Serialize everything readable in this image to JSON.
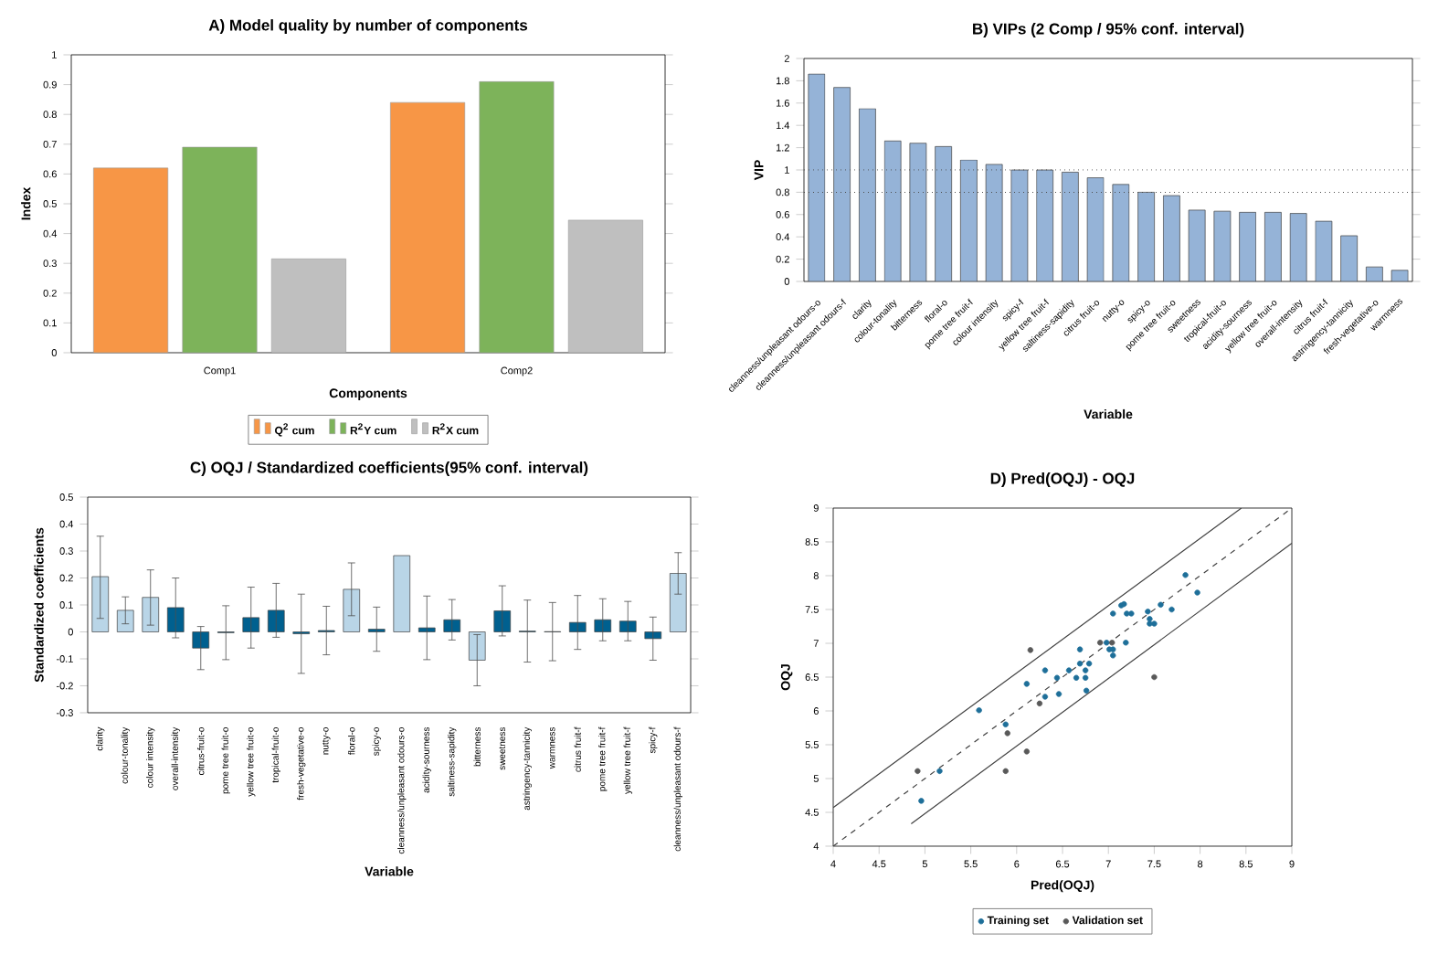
{
  "chart_data": [
    {
      "type": "bar",
      "title": "A)  Model quality by number of components",
      "xlabel": "Components",
      "ylabel": "Index",
      "categories": [
        "Comp1",
        "Comp2"
      ],
      "series": [
        {
          "name": "Q$^{2}$ cum",
          "color": "#f79646",
          "values": [
            0.62,
            0.84
          ]
        },
        {
          "name": "R$^{2}$Y cum",
          "color": "#7db35a",
          "values": [
            0.69,
            0.91
          ]
        },
        {
          "name": "R$^{2}$X cum",
          "color": "#bfbfbf",
          "values": [
            0.315,
            0.445
          ]
        }
      ],
      "ylim": [
        0,
        1
      ],
      "yticks": [
        0,
        0.1,
        0.2,
        0.3,
        0.4,
        0.5,
        0.6,
        0.7,
        0.8,
        0.9,
        1
      ],
      "legend": "bottom"
    },
    {
      "type": "bar",
      "title": "B)  VIPs (2 Comp / 95% conf. interval)",
      "xlabel": "Variable",
      "ylabel": "VIP",
      "categories": [
        "cleanness/unpleasant odours-o",
        "cleanness/unpleasant odours-f",
        "clarity",
        "colour-tonality",
        "bitterness",
        "floral-o",
        "pome tree fruit-f",
        "colour intensity",
        "spicy-f",
        "yellow tree fruit-f",
        "saltiness-sapidity",
        "citrus fruit-o",
        "nutty-o",
        "spicy-o",
        "pome tree fruit-o",
        "sweetness",
        "tropical-fruit-o",
        "acidity-sourness",
        "yellow tree fruit-o",
        "overall-intensity",
        "citrus fruit-f",
        "astringency-tannicity",
        "fresh-vegetative-o",
        "warmness"
      ],
      "values": [
        1.86,
        1.74,
        1.55,
        1.26,
        1.24,
        1.21,
        1.09,
        1.05,
        1.0,
        1.0,
        0.98,
        0.93,
        0.87,
        0.8,
        0.77,
        0.64,
        0.63,
        0.62,
        0.62,
        0.61,
        0.54,
        0.41,
        0.13,
        0.1
      ],
      "color": "#95b3d7",
      "ylim": [
        0,
        2
      ],
      "yticks": [
        0,
        0.2,
        0.4,
        0.6,
        0.8,
        1,
        1.2,
        1.4,
        1.6,
        1.8,
        2
      ],
      "ref_lines": [
        {
          "axis": "y",
          "value": 1,
          "line_style": "dotted"
        },
        {
          "axis": "y",
          "value": 0.8,
          "line_style": "dotted"
        }
      ]
    },
    {
      "type": "bar",
      "title": "C)  OQJ / Standardized coefficients(95% conf. interval)",
      "xlabel": "Variable",
      "ylabel": "Standardized coefficients",
      "categories": [
        "clarity",
        "colour-tonality",
        "colour intensity",
        "overall-intensity",
        "citrus-fruit-o",
        "pome tree fruit-o",
        "yellow tree fruit-o",
        "tropical-fruit-o",
        "fresh-vegetative-o",
        "nutty-o",
        "floral-o",
        "spicy-o",
        "cleanness/unpleasant odours-o",
        "acidity-sourness",
        "saltiness-sapidity",
        "bitterness",
        "sweetness",
        "astringency-tannicity",
        "warmness",
        "citrus fruit-f",
        "pome tree fruit-f",
        "yellow tree fruit-f",
        "spicy-f",
        "cleanness/unpleasant odours-f"
      ],
      "values": [
        0.205,
        0.08,
        0.128,
        0.09,
        -0.06,
        -0.003,
        0.053,
        0.08,
        -0.007,
        0.005,
        0.158,
        0.01,
        0.283,
        0.015,
        0.045,
        -0.105,
        0.078,
        0.003,
        0.001,
        0.035,
        0.045,
        0.04,
        -0.025,
        0.217
      ],
      "colors": [
        "#b9d5e7",
        "#b9d5e7",
        "#b9d5e7",
        "#00608f",
        "#00608f",
        "#00608f",
        "#00608f",
        "#00608f",
        "#00608f",
        "#00608f",
        "#b9d5e7",
        "#00608f",
        "#b9d5e7",
        "#00608f",
        "#00608f",
        "#b9d5e7",
        "#00608f",
        "#00608f",
        "#00608f",
        "#00608f",
        "#00608f",
        "#00608f",
        "#00608f",
        "#b9d5e7"
      ],
      "errors": [
        [
          0.05,
          0.355
        ],
        [
          0.03,
          0.13
        ],
        [
          0.025,
          0.23
        ],
        [
          -0.022,
          0.2
        ],
        [
          -0.14,
          0.02
        ],
        [
          -0.103,
          0.097
        ],
        [
          -0.06,
          0.166
        ],
        [
          -0.02,
          0.18
        ],
        [
          -0.154,
          0.14
        ],
        [
          -0.085,
          0.095
        ],
        [
          0.06,
          0.256
        ],
        [
          -0.072,
          0.092
        ],
        null,
        [
          -0.103,
          0.133
        ],
        [
          -0.03,
          0.12
        ],
        [
          -0.2,
          -0.01
        ],
        [
          -0.015,
          0.171
        ],
        [
          -0.112,
          0.118
        ],
        [
          -0.107,
          0.109
        ],
        [
          -0.065,
          0.135
        ],
        [
          -0.033,
          0.123
        ],
        [
          -0.033,
          0.113
        ],
        [
          -0.105,
          0.055
        ],
        [
          0.14,
          0.294
        ]
      ],
      "ylim": [
        -0.3,
        0.5
      ],
      "yticks": [
        -0.3,
        -0.2,
        -0.1,
        0,
        0.1,
        0.2,
        0.3,
        0.4,
        0.5
      ]
    },
    {
      "type": "scatter",
      "title": "D)  Pred(OQJ) - OQJ",
      "xlabel": "Pred(OQJ)",
      "ylabel": "OQJ",
      "marker": "circle",
      "legend": "bottom",
      "xlim": [
        4,
        9
      ],
      "xticks": [
        4,
        4.5,
        5,
        5.5,
        6,
        6.5,
        7,
        7.5,
        8,
        8.5,
        9
      ],
      "ylim": [
        4,
        9
      ],
      "yticks": [
        4,
        4.5,
        5,
        5.5,
        6,
        6.5,
        7,
        7.5,
        8,
        8.5,
        9
      ],
      "series": [
        {
          "name": "Training set",
          "color": "#1e6f99",
          "x": [
            4.96,
            5.16,
            5.59,
            5.88,
            6.11,
            6.31,
            6.31,
            6.44,
            6.46,
            6.57,
            6.65,
            6.69,
            6.69,
            6.75,
            6.75,
            6.76,
            6.79,
            6.98,
            7.01,
            7.03,
            7.05,
            7.05,
            7.05,
            7.14,
            7.17,
            7.19,
            7.2,
            7.25,
            7.43,
            7.45,
            7.45,
            7.5,
            7.57,
            7.69,
            7.84,
            7.97
          ],
          "values": [
            4.67,
            5.11,
            6.01,
            5.8,
            6.4,
            6.6,
            6.21,
            6.49,
            6.25,
            6.6,
            6.49,
            6.91,
            6.7,
            6.6,
            6.49,
            6.3,
            6.7,
            7.01,
            6.91,
            null,
            6.82,
            6.91,
            7.44,
            7.56,
            7.58,
            7.01,
            7.44,
            7.44,
            7.47,
            7.36,
            7.29,
            7.29,
            7.57,
            7.5,
            8.01,
            7.75
          ]
        },
        {
          "name": "Validation set",
          "color": "#595959",
          "x": [
            4.92,
            5.88,
            5.9,
            6.15,
            6.11,
            6.25,
            6.91,
            7.04,
            7.5
          ],
          "values": [
            5.11,
            5.11,
            5.67,
            6.9,
            5.4,
            6.11,
            7.01,
            7.01,
            6.5
          ]
        },
        {
          "type": "line",
          "color": "#404040",
          "marker": "none",
          "line_style": "dashed",
          "x": [
            4,
            9
          ],
          "values": [
            4,
            9
          ]
        },
        {
          "type": "line",
          "color": "#404040",
          "marker": "none",
          "line_style": "solid",
          "x": [
            4,
            8.45
          ],
          "values": [
            4.57,
            9
          ]
        },
        {
          "type": "line",
          "color": "#404040",
          "marker": "none",
          "line_style": "solid",
          "x": [
            4.85,
            9
          ],
          "values": [
            4.33,
            8.48
          ]
        }
      ]
    }
  ]
}
